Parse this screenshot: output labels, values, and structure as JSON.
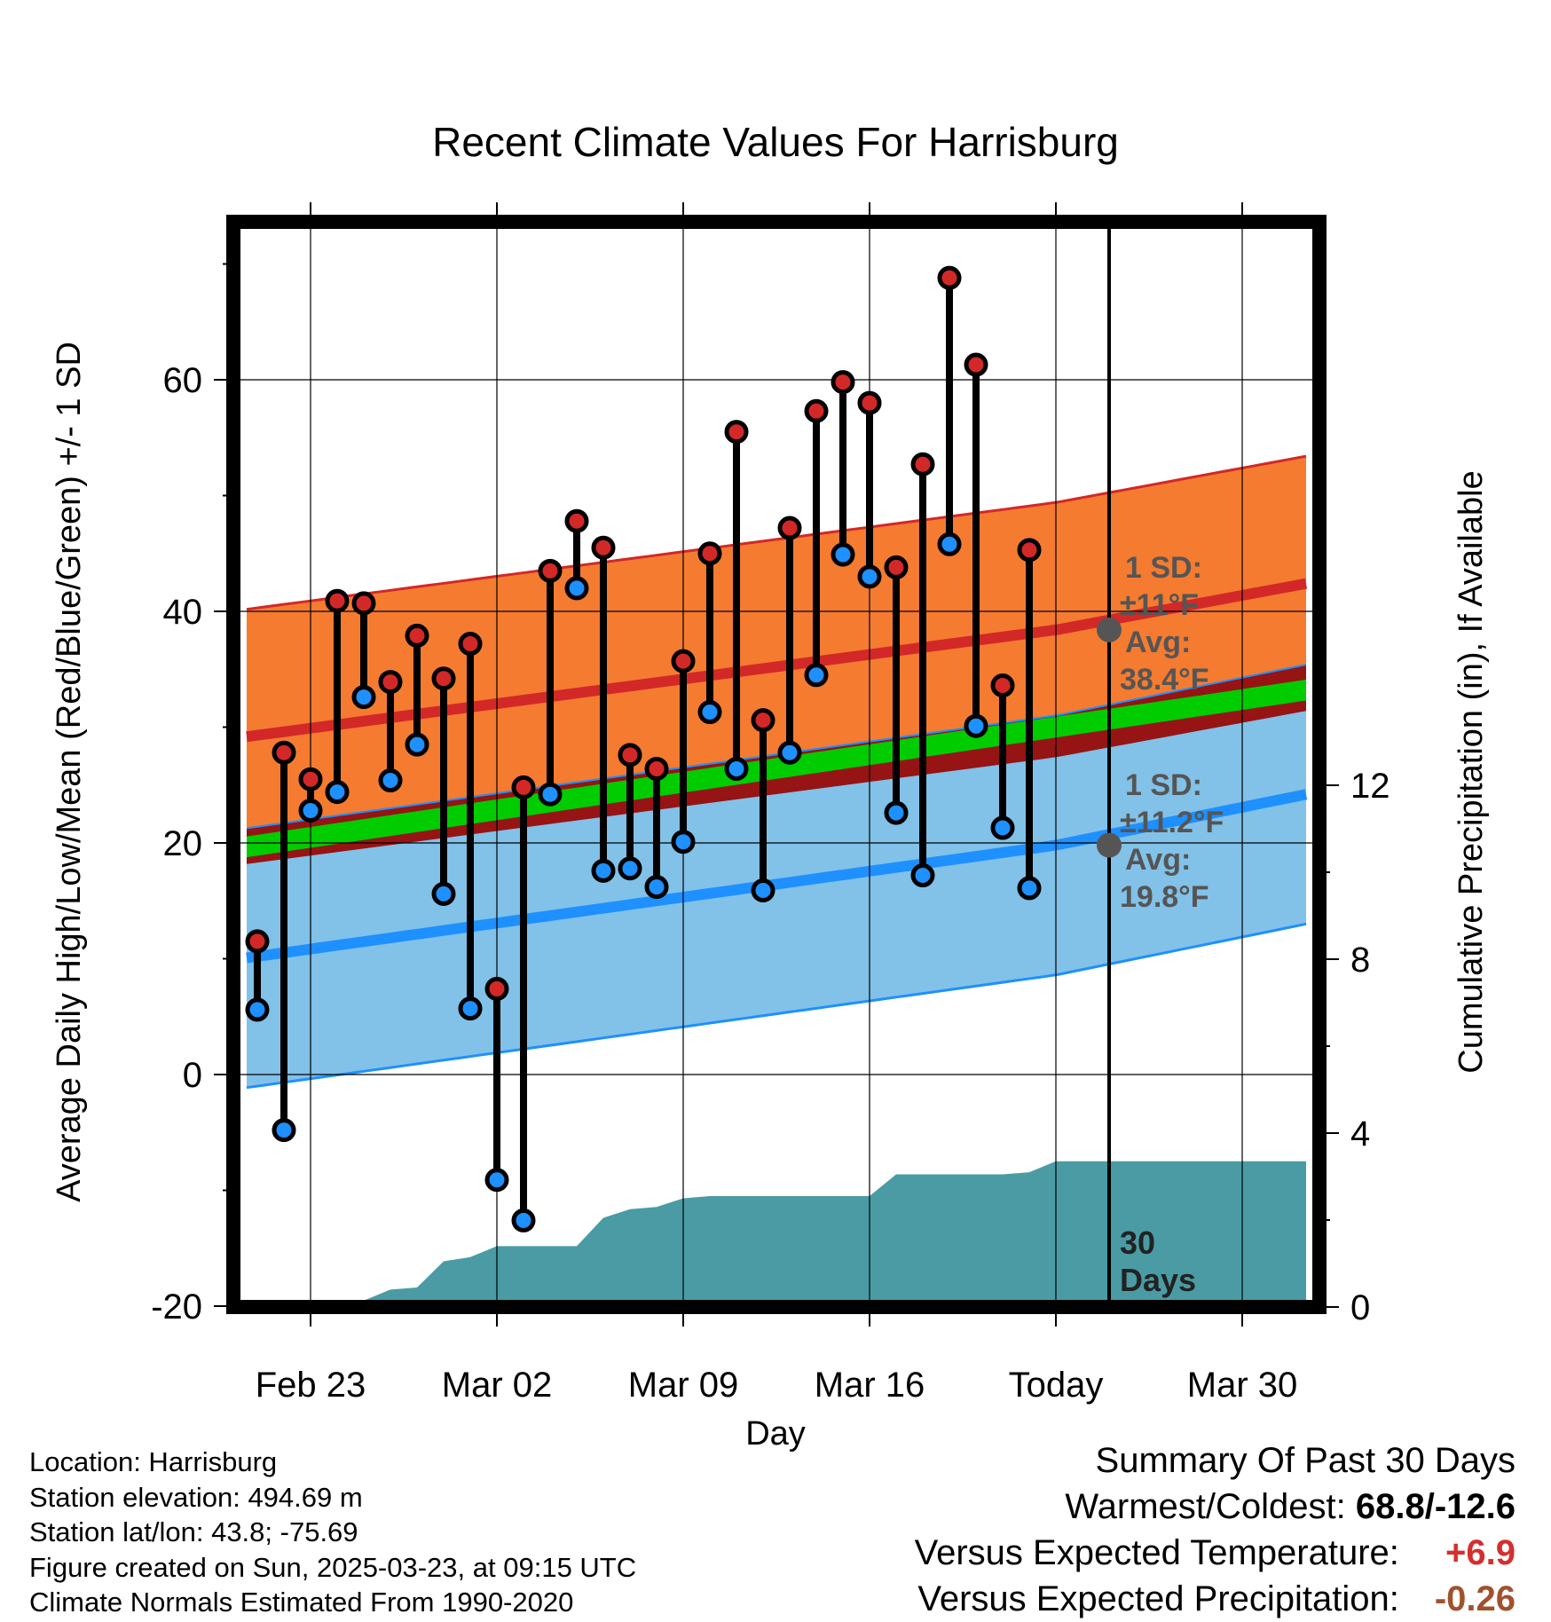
{
  "chart_data": {
    "type": "line",
    "title": "Recent Climate Values For Harrisburg",
    "xlabel": "Day",
    "ylabel": "Average Daily High/Low/Mean (Red/Blue/Green) +/- 1 SD",
    "y2label": "Cumulative Precipitation (in), If Available",
    "ylim": [
      -20,
      72
    ],
    "y2lim": [
      0,
      24
    ],
    "x_ticks": [
      "Feb 23",
      "Mar 02",
      "Mar 09",
      "Mar 16",
      "Today",
      "Mar 30"
    ],
    "y_ticks": [
      -20,
      0,
      20,
      40,
      60
    ],
    "y2_ticks": [
      0,
      4,
      8,
      12
    ],
    "days": 30,
    "days_label": {
      "count": "30",
      "unit": "Days"
    },
    "daily_high": [
      11.5,
      27.8,
      25.5,
      40.9,
      40.7,
      33.9,
      37.9,
      34.2,
      37.2,
      7.4,
      24.8,
      43.5,
      47.8,
      45.5,
      27.6,
      26.4,
      35.7,
      45.0,
      55.5,
      30.6,
      47.2,
      57.3,
      59.8,
      58.0,
      43.8,
      52.7,
      68.8,
      61.3,
      33.6,
      45.3
    ],
    "daily_low": [
      5.6,
      -4.8,
      22.8,
      24.4,
      32.6,
      25.4,
      28.5,
      15.6,
      5.7,
      -9.1,
      -12.6,
      24.2,
      42.0,
      17.6,
      17.8,
      16.2,
      20.1,
      31.3,
      26.4,
      15.9,
      27.8,
      34.5,
      44.9,
      43.0,
      22.6,
      17.2,
      45.8,
      30.1,
      21.3,
      16.1
    ],
    "normal_high": {
      "start": 29.3,
      "today": 38.4,
      "end": 42.4
    },
    "normal_high_sd": 11,
    "normal_low": {
      "start": 10.2,
      "today": 19.8,
      "end": 24.2
    },
    "normal_low_sd": 11.2,
    "normal_mean": {
      "start": 19.8,
      "end": 33.2
    },
    "cumulative_precip": [
      0.0,
      0.0,
      0.1,
      0.15,
      0.4,
      0.45,
      1.05,
      1.15,
      1.4,
      1.4,
      1.4,
      1.4,
      2.05,
      2.25,
      2.3,
      2.5,
      2.55,
      2.55,
      2.55,
      2.55,
      2.55,
      2.55,
      2.55,
      3.05,
      3.05,
      3.05,
      3.05,
      3.05,
      3.1,
      3.35,
      3.35
    ],
    "annotations": {
      "high": {
        "sd_label": "1 SD:",
        "sd_value": "±11°F",
        "avg_label": "Avg:",
        "avg_value": "38.4°F"
      },
      "low": {
        "sd_label": "1 SD:",
        "sd_value": "±11.2°F",
        "avg_label": "Avg:",
        "avg_value": "19.8°F"
      }
    },
    "colors": {
      "high_band": "#f47b30",
      "high_line": "#d32828",
      "low_band": "#82c1e8",
      "low_line": "#1e90ff",
      "overlap": "#961414",
      "mean_band": "#00cc00",
      "precip": "#4a9ba4",
      "high_point": "#d32828",
      "low_point": "#1e90ff"
    }
  },
  "footer": {
    "location": "Location: Harrisburg",
    "elevation": "Station elevation: 494.69 m",
    "latlon": "Station lat/lon: 43.8; -75.69",
    "created": "Figure created on Sun, 2025-03-23, at 09:15 UTC",
    "normals": "Climate Normals Estimated From 1990-2020"
  },
  "summary": {
    "title": "Summary Of Past 30 Days",
    "warm_cold_label": "Warmest/Coldest:",
    "warm_cold_value": "68.8/-12.6",
    "temp_label": "Versus Expected Temperature:",
    "temp_value": "+6.9",
    "precip_label": "Versus Expected Precipitation:",
    "precip_value": "-0.26"
  }
}
